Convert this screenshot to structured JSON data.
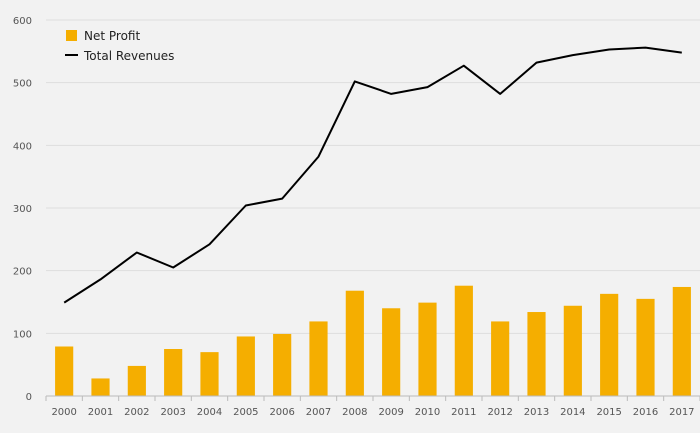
{
  "chart_data": {
    "type": "bar+line",
    "title": "",
    "xlabel": "",
    "ylabel": "",
    "ylim": [
      0,
      600
    ],
    "yticks": [
      0,
      100,
      200,
      300,
      400,
      500,
      600
    ],
    "grid": true,
    "legend_position": "top-left",
    "categories": [
      "2000",
      "2001",
      "2002",
      "2003",
      "2004",
      "2005",
      "2006",
      "2007",
      "2008",
      "2009",
      "2010",
      "2011",
      "2012",
      "2013",
      "2014",
      "2015",
      "2016",
      "2017"
    ],
    "series": [
      {
        "name": "Net Profit",
        "type": "bar",
        "color": "#f5ae00",
        "values": [
          79,
          28,
          48,
          75,
          70,
          95,
          99,
          119,
          168,
          140,
          149,
          176,
          119,
          134,
          144,
          163,
          155,
          174
        ]
      },
      {
        "name": "Total Revenues",
        "type": "line",
        "color": "#000000",
        "values": [
          149,
          186,
          229,
          205,
          242,
          304,
          315,
          382,
          502,
          482,
          493,
          527,
          482,
          532,
          544,
          553,
          556,
          548
        ]
      }
    ]
  }
}
